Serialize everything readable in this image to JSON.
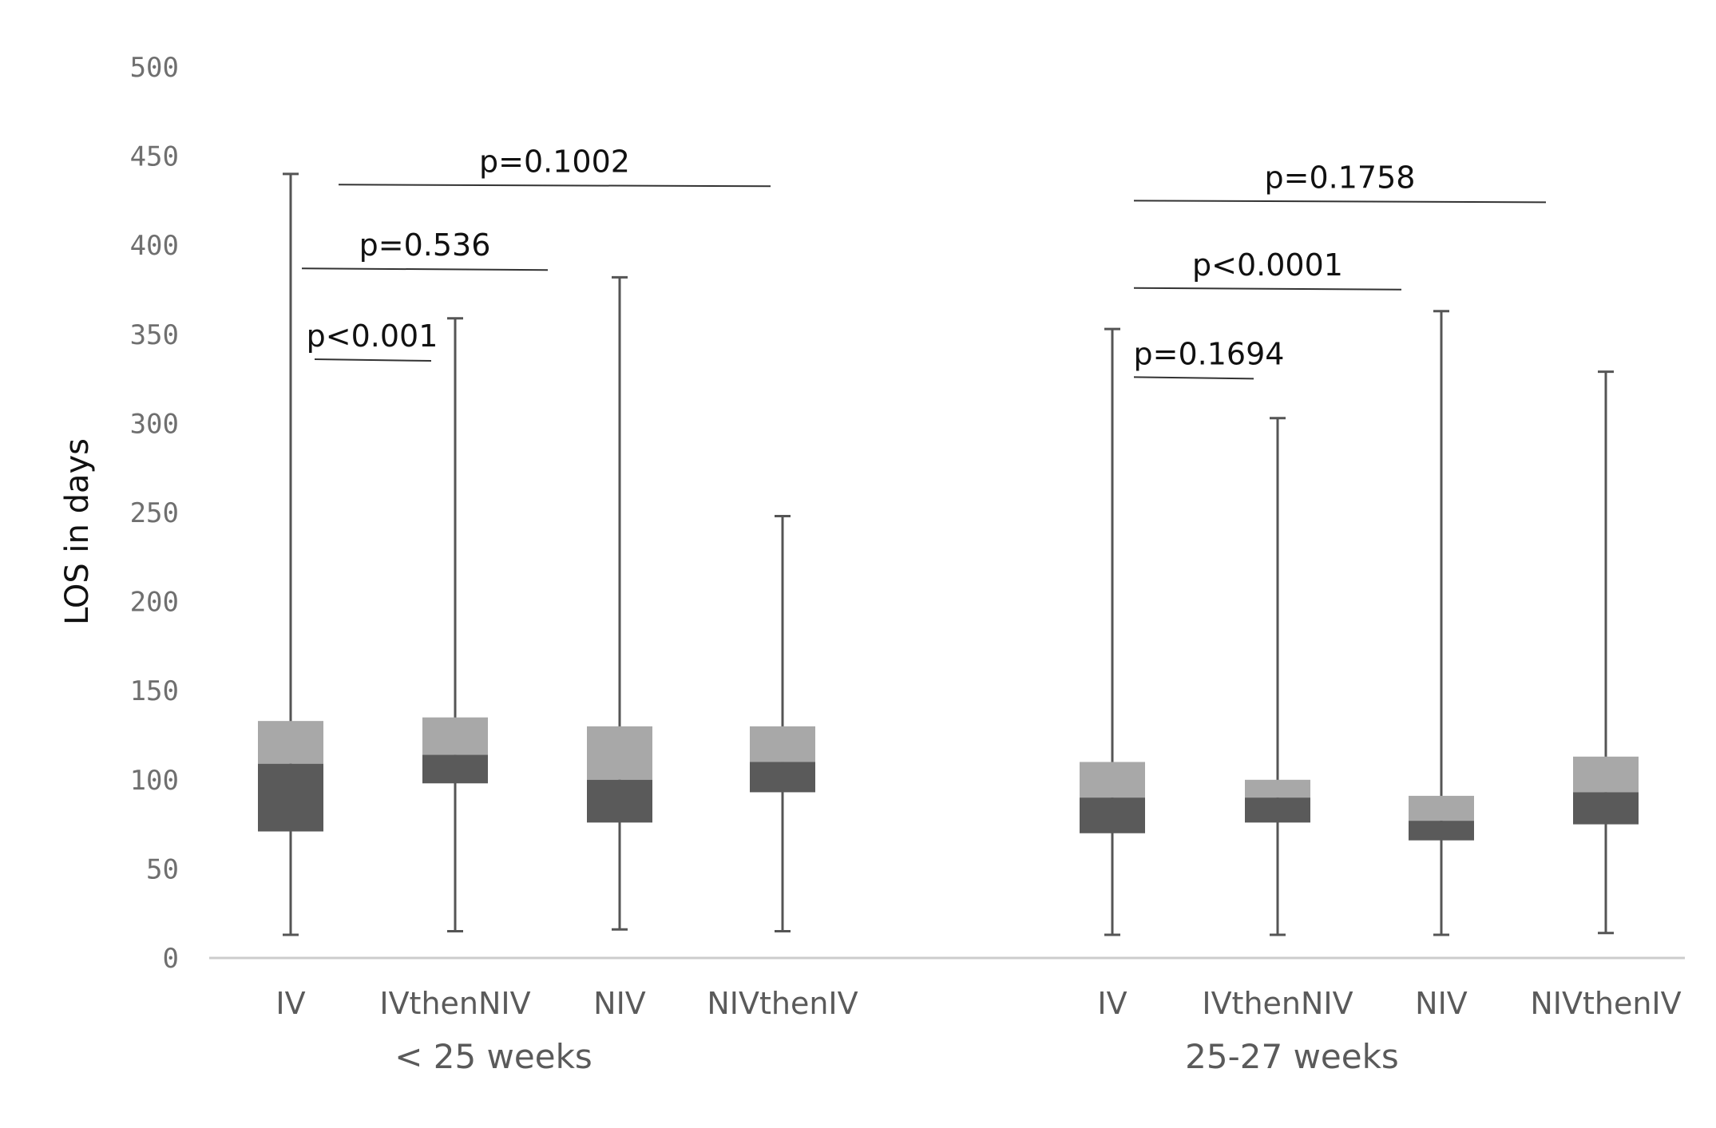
{
  "chart_data": {
    "type": "boxplot",
    "ylabel": "LOS in days",
    "ylim": [
      0,
      500
    ],
    "yticks": [
      "0",
      "50",
      "100",
      "150",
      "200",
      "250",
      "300",
      "350",
      "400",
      "450",
      "500"
    ],
    "grid": false,
    "colors": {
      "upper_box": "#a8a8a8",
      "lower_box": "#5a5a5a",
      "whisker": "#555555",
      "axis": "#cccccc",
      "bracket": "#333333"
    },
    "groups": [
      {
        "label": "< 25 weeks",
        "boxes": [
          {
            "label": "IV",
            "min": 13,
            "q1": 71,
            "median": 109,
            "q3": 133,
            "max": 440
          },
          {
            "label": "IVthenNIV",
            "min": 15,
            "q1": 98,
            "median": 114,
            "q3": 135,
            "max": 359
          },
          {
            "label": "NIV",
            "min": 16,
            "q1": 76,
            "median": 100,
            "q3": 130,
            "max": 382
          },
          {
            "label": "NIVthenIV",
            "min": 15,
            "q1": 93,
            "median": 110,
            "q3": 130,
            "max": 248
          }
        ],
        "comparisons": [
          {
            "label": "p<0.001",
            "from": 0,
            "to": 1,
            "level": 336
          },
          {
            "label": "p=0.536",
            "from": 0,
            "to": 2,
            "level": 387
          },
          {
            "label": "p=0.1002",
            "from": 0,
            "to": 3,
            "level": 434
          }
        ]
      },
      {
        "label": "25-27 weeks",
        "boxes": [
          {
            "label": "IV",
            "min": 13,
            "q1": 70,
            "median": 90,
            "q3": 110,
            "max": 353
          },
          {
            "label": "IVthenNIV",
            "min": 13,
            "q1": 76,
            "median": 90,
            "q3": 100,
            "max": 303
          },
          {
            "label": "NIV",
            "min": 13,
            "q1": 66,
            "median": 77,
            "q3": 91,
            "max": 363
          },
          {
            "label": "NIVthenIV",
            "min": 14,
            "q1": 75,
            "median": 93,
            "q3": 113,
            "max": 329
          }
        ],
        "comparisons": [
          {
            "label": "p=0.1694",
            "from": 0,
            "to": 1,
            "level": 326
          },
          {
            "label": "p<0.0001",
            "from": 0,
            "to": 2,
            "level": 376
          },
          {
            "label": "p=0.1758",
            "from": 0,
            "to": 3,
            "level": 425
          }
        ]
      }
    ]
  }
}
